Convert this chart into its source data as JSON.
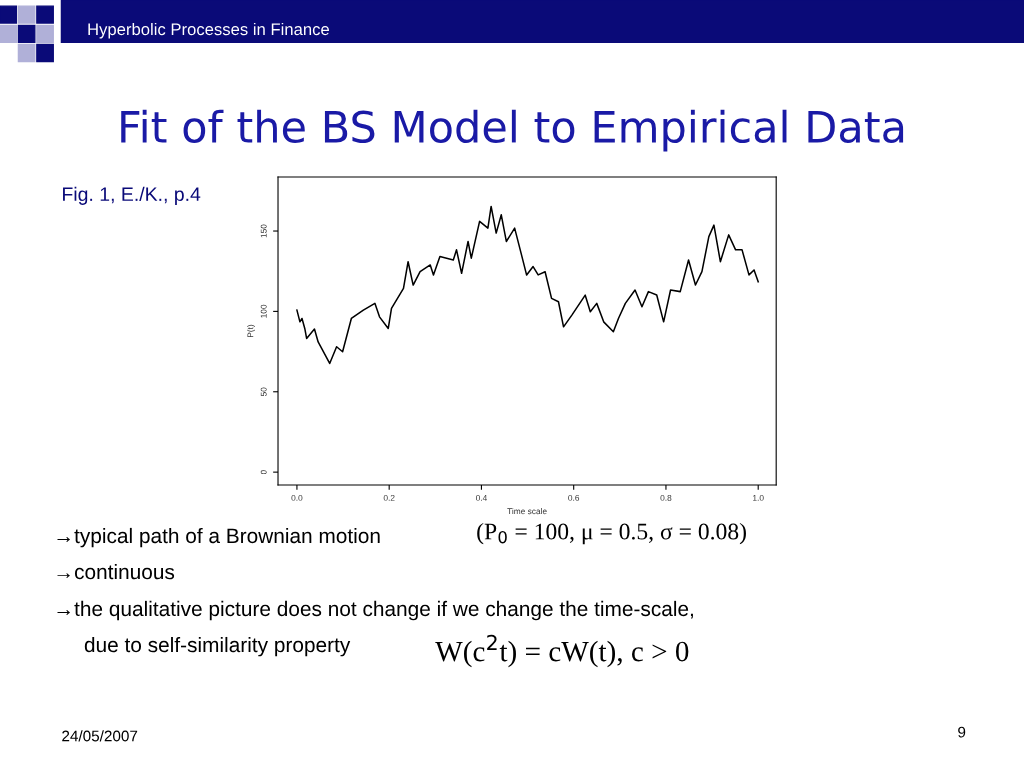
{
  "chart_data": {
    "type": "line",
    "title": "Fit of the BS Model to Empirical Data",
    "xlabel": "Time scale",
    "ylabel": "P(t)",
    "x": [
      0.0,
      0.0065,
      0.011,
      0.017,
      0.021,
      0.038,
      0.046,
      0.071,
      0.086,
      0.099,
      0.118,
      0.144,
      0.169,
      0.179,
      0.198,
      0.205,
      0.231,
      0.241,
      0.252,
      0.267,
      0.289,
      0.296,
      0.31,
      0.339,
      0.346,
      0.357,
      0.371,
      0.378,
      0.396,
      0.414,
      0.421,
      0.432,
      0.443,
      0.454,
      0.472,
      0.487,
      0.498,
      0.512,
      0.523,
      0.538,
      0.552,
      0.567,
      0.578,
      0.596,
      0.625,
      0.636,
      0.65,
      0.665,
      0.686,
      0.697,
      0.712,
      0.733,
      0.748,
      0.762,
      0.78,
      0.795,
      0.81,
      0.831,
      0.849,
      0.864,
      0.878,
      0.893,
      0.904,
      0.918,
      0.936,
      0.951,
      0.965,
      0.98,
      0.991,
      1.0
    ],
    "series": [
      {
        "color": "#000000",
        "values": [
          100.8,
          93.5,
          95.6,
          89.4,
          83.2,
          89,
          81,
          67.6,
          78,
          74.9,
          95.6,
          100.8,
          105,
          96.6,
          89.4,
          101.9,
          114.3,
          130.9,
          116.4,
          124.7,
          128.9,
          122.7,
          134.1,
          132,
          138.3,
          123.7,
          143.5,
          133.1,
          156,
          151.8,
          165.3,
          148.7,
          160.1,
          143.5,
          151.8,
          135,
          122.6,
          127.9,
          122.7,
          124.7,
          108.1,
          106,
          90.4,
          97.7,
          110.1,
          99.8,
          105,
          93.5,
          87.3,
          95.6,
          105,
          113.3,
          102.9,
          112.3,
          110.2,
          93.5,
          113.3,
          112.3,
          132,
          116.4,
          124.7,
          146.5,
          153.7,
          130.9,
          147.6,
          138.3,
          138.3,
          122.7,
          125.8,
          118.5
        ]
      }
    ],
    "xlim": [
      -0.041,
      1.039
    ],
    "ylim": [
      -8,
      183.6
    ],
    "xticks": [
      {
        "value": 0,
        "label": "0.0"
      },
      0.2,
      0.4,
      0.6,
      0.8,
      {
        "value": 1,
        "label": "1.0"
      }
    ],
    "yticks": [
      0,
      50,
      100,
      150
    ],
    "grid": false,
    "legend": false,
    "marker": "none",
    "line_style": "solid",
    "annotations": [
      "Hyperbolic Processes in Finance",
      "Fig. 1, E./K., p.4",
      "→typical path of a Brownian motion",
      "(P$_{0}$ = 100, μ = 0.5, σ = 0.08)",
      "→continuous",
      "→the qualitative picture does not change if we change the time-scale,",
      "due to self-similarity property",
      "W(c$^{2}$t) = cW(t), c > 0",
      "24/05/2007",
      "9"
    ]
  }
}
